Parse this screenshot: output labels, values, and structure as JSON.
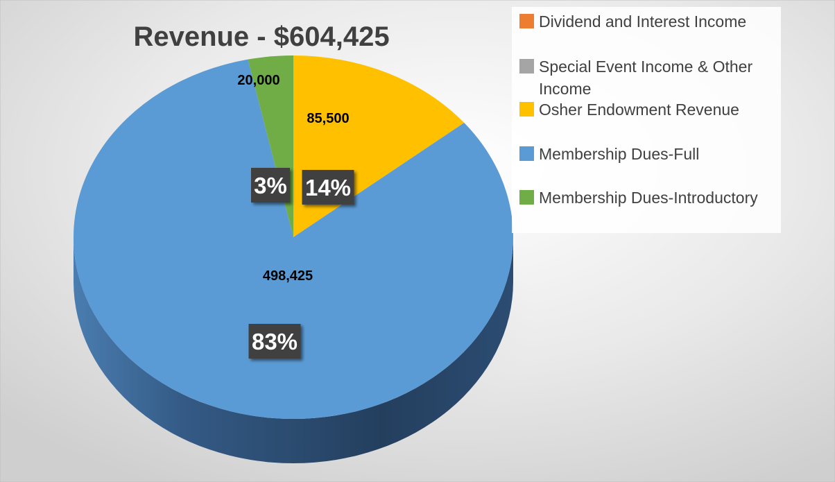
{
  "chart_data": {
    "type": "pie",
    "style": "3d",
    "title": "Revenue - $604,425",
    "slices": [
      {
        "name": "Dividend and Interest Income",
        "value": 0,
        "value_label": "",
        "percent_label": "",
        "color": "#ED7D31"
      },
      {
        "name": "Special Event Income & Other Income",
        "value": 0,
        "value_label": "",
        "percent_label": "",
        "color": "#A5A5A5"
      },
      {
        "name": "Osher Endowment Revenue",
        "value": 85500,
        "value_label": "85,500",
        "percent_label": "14%",
        "color": "#FFC000"
      },
      {
        "name": "Membership Dues-Full",
        "value": 498425,
        "value_label": "498,425",
        "percent_label": "83%",
        "color": "#5B9BD5"
      },
      {
        "name": "Membership Dues-Introductory",
        "value": 20000,
        "value_label": "20,000",
        "percent_label": "3%",
        "color": "#70AD47"
      }
    ],
    "legend": {
      "position": "right",
      "entries": [
        {
          "lines": [
            "Dividend and Interest Income"
          ],
          "color": "#ED7D31"
        },
        {
          "lines": [
            "Special Event Income & Other",
            "Income"
          ],
          "color": "#A5A5A5"
        },
        {
          "lines": [
            "Osher Endowment Revenue"
          ],
          "color": "#FFC000"
        },
        {
          "lines": [
            "Membership Dues-Full"
          ],
          "color": "#5B9BD5"
        },
        {
          "lines": [
            "Membership Dues-Introductory"
          ],
          "color": "#70AD47"
        }
      ]
    },
    "label_box_color": "#404040"
  }
}
